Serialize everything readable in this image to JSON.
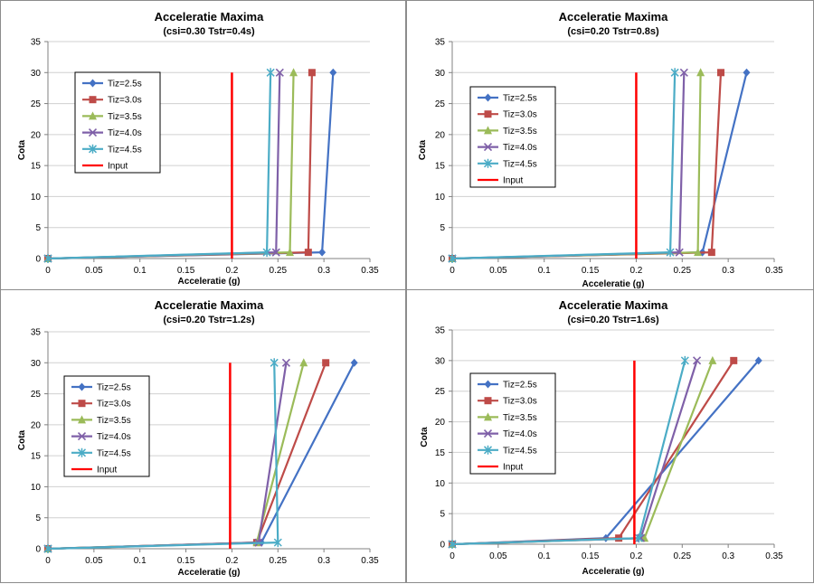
{
  "chart_data": [
    {
      "type": "line",
      "title": "Acceleratie Maxima",
      "subtitle": "(csi=0.30  Tstr=0.4s)",
      "xlabel": "Acceleratie (g)",
      "ylabel": "Cota",
      "xlim": [
        0,
        0.35
      ],
      "ylim": [
        0,
        35
      ],
      "xticks": [
        "0",
        "0.05",
        "0.1",
        "0.15",
        "0.2",
        "0.25",
        "0.3",
        "0.35"
      ],
      "yticks": [
        "0",
        "5",
        "10",
        "15",
        "20",
        "25",
        "30",
        "35"
      ],
      "grid": true,
      "legend_position": "left",
      "series": [
        {
          "name": "Tiz=2.5s",
          "color": "#4472c4",
          "marker": "diamond",
          "x": [
            0,
            0.298,
            0.31
          ],
          "y": [
            0,
            1,
            30
          ]
        },
        {
          "name": "Tiz=3.0s",
          "color": "#be4b48",
          "marker": "square",
          "x": [
            0,
            0.283,
            0.287
          ],
          "y": [
            0,
            1,
            30
          ]
        },
        {
          "name": "Tiz=3.5s",
          "color": "#9bbb59",
          "marker": "triangle",
          "x": [
            0,
            0.263,
            0.267
          ],
          "y": [
            0,
            1,
            30
          ]
        },
        {
          "name": "Tiz=4.0s",
          "color": "#7f60a8",
          "marker": "x",
          "x": [
            0,
            0.248,
            0.252
          ],
          "y": [
            0,
            1,
            30
          ]
        },
        {
          "name": "Tiz=4.5s",
          "color": "#4bacc6",
          "marker": "star",
          "x": [
            0,
            0.238,
            0.242
          ],
          "y": [
            0,
            1,
            30
          ]
        },
        {
          "name": "Input",
          "color": "#ff0000",
          "marker": "none",
          "x": [
            0.2,
            0.2
          ],
          "y": [
            0,
            30
          ]
        }
      ]
    },
    {
      "type": "line",
      "title": "Acceleratie Maxima",
      "subtitle": "(csi=0.20  Tstr=0.8s)",
      "xlabel": "Acceleratie (g)",
      "ylabel": "Cota",
      "xlim": [
        0,
        0.35
      ],
      "ylim": [
        0,
        35
      ],
      "xticks": [
        "0",
        "0.05",
        "0.1",
        "0.15",
        "0.2",
        "0.25",
        "0.3",
        "0.35"
      ],
      "yticks": [
        "0",
        "5",
        "10",
        "15",
        "20",
        "25",
        "30",
        "35"
      ],
      "grid": true,
      "legend_position": "left",
      "series": [
        {
          "name": "Tiz=2.5s",
          "color": "#4472c4",
          "marker": "diamond",
          "x": [
            0,
            0.272,
            0.32
          ],
          "y": [
            0,
            1,
            30
          ]
        },
        {
          "name": "Tiz=3.0s",
          "color": "#be4b48",
          "marker": "square",
          "x": [
            0,
            0.282,
            0.292
          ],
          "y": [
            0,
            1,
            30
          ]
        },
        {
          "name": "Tiz=3.5s",
          "color": "#9bbb59",
          "marker": "triangle",
          "x": [
            0,
            0.267,
            0.27
          ],
          "y": [
            0,
            1,
            30
          ]
        },
        {
          "name": "Tiz=4.0s",
          "color": "#7f60a8",
          "marker": "x",
          "x": [
            0,
            0.247,
            0.252
          ],
          "y": [
            0,
            1,
            30
          ]
        },
        {
          "name": "Tiz=4.5s",
          "color": "#4bacc6",
          "marker": "star",
          "x": [
            0,
            0.237,
            0.242
          ],
          "y": [
            0,
            1,
            30
          ]
        },
        {
          "name": "Input",
          "color": "#ff0000",
          "marker": "none",
          "x": [
            0.2,
            0.2
          ],
          "y": [
            0,
            30
          ]
        }
      ]
    },
    {
      "type": "line",
      "title": "Acceleratie Maxima",
      "subtitle": "(csi=0.20  Tstr=1.2s)",
      "xlabel": "Acceleratie (g)",
      "ylabel": "Cota",
      "xlim": [
        0,
        0.35
      ],
      "ylim": [
        0,
        35
      ],
      "xticks": [
        "0",
        "0.05",
        "0.1",
        "0.15",
        "0.2",
        "0.25",
        "0.3",
        "0.35"
      ],
      "yticks": [
        "0",
        "5",
        "10",
        "15",
        "20",
        "25",
        "30",
        "35"
      ],
      "grid": true,
      "legend_position": "left",
      "series": [
        {
          "name": "Tiz=2.5s",
          "color": "#4472c4",
          "marker": "diamond",
          "x": [
            0,
            0.232,
            0.333
          ],
          "y": [
            0,
            1,
            30
          ]
        },
        {
          "name": "Tiz=3.0s",
          "color": "#be4b48",
          "marker": "square",
          "x": [
            0,
            0.227,
            0.302
          ],
          "y": [
            0,
            1,
            30
          ]
        },
        {
          "name": "Tiz=3.5s",
          "color": "#9bbb59",
          "marker": "triangle",
          "x": [
            0,
            0.227,
            0.278
          ],
          "y": [
            0,
            1,
            30
          ]
        },
        {
          "name": "Tiz=4.0s",
          "color": "#7f60a8",
          "marker": "x",
          "x": [
            0,
            0.229,
            0.259
          ],
          "y": [
            0,
            1,
            30
          ]
        },
        {
          "name": "Tiz=4.5s",
          "color": "#4bacc6",
          "marker": "star",
          "x": [
            0,
            0.25,
            0.246
          ],
          "y": [
            0,
            1,
            30
          ]
        },
        {
          "name": "Input",
          "color": "#ff0000",
          "marker": "none",
          "x": [
            0.198,
            0.198
          ],
          "y": [
            0,
            30
          ]
        }
      ]
    },
    {
      "type": "line",
      "title": "Acceleratie Maxima",
      "subtitle": "(csi=0.20  Tstr=1.6s)",
      "xlabel": "Acceleratie (g)",
      "ylabel": "Cota",
      "xlim": [
        0,
        0.35
      ],
      "ylim": [
        0,
        35
      ],
      "xticks": [
        "0",
        "0.05",
        "0.1",
        "0.15",
        "0.2",
        "0.25",
        "0.3",
        "0.35"
      ],
      "yticks": [
        "0",
        "5",
        "10",
        "15",
        "20",
        "25",
        "30",
        "35"
      ],
      "grid": true,
      "legend_position": "left",
      "series": [
        {
          "name": "Tiz=2.5s",
          "color": "#4472c4",
          "marker": "diamond",
          "x": [
            0,
            0.167,
            0.333
          ],
          "y": [
            0,
            1,
            30
          ]
        },
        {
          "name": "Tiz=3.0s",
          "color": "#be4b48",
          "marker": "square",
          "x": [
            0,
            0.181,
            0.306
          ],
          "y": [
            0,
            1,
            30
          ]
        },
        {
          "name": "Tiz=3.5s",
          "color": "#9bbb59",
          "marker": "triangle",
          "x": [
            0,
            0.209,
            0.283
          ],
          "y": [
            0,
            1,
            30
          ]
        },
        {
          "name": "Tiz=4.0s",
          "color": "#7f60a8",
          "marker": "x",
          "x": [
            0,
            0.205,
            0.266
          ],
          "y": [
            0,
            1,
            30
          ]
        },
        {
          "name": "Tiz=4.5s",
          "color": "#4bacc6",
          "marker": "star",
          "x": [
            0,
            0.203,
            0.253
          ],
          "y": [
            0,
            1,
            30
          ]
        },
        {
          "name": "Input",
          "color": "#ff0000",
          "marker": "none",
          "x": [
            0.198,
            0.198
          ],
          "y": [
            0,
            30
          ]
        }
      ]
    }
  ]
}
